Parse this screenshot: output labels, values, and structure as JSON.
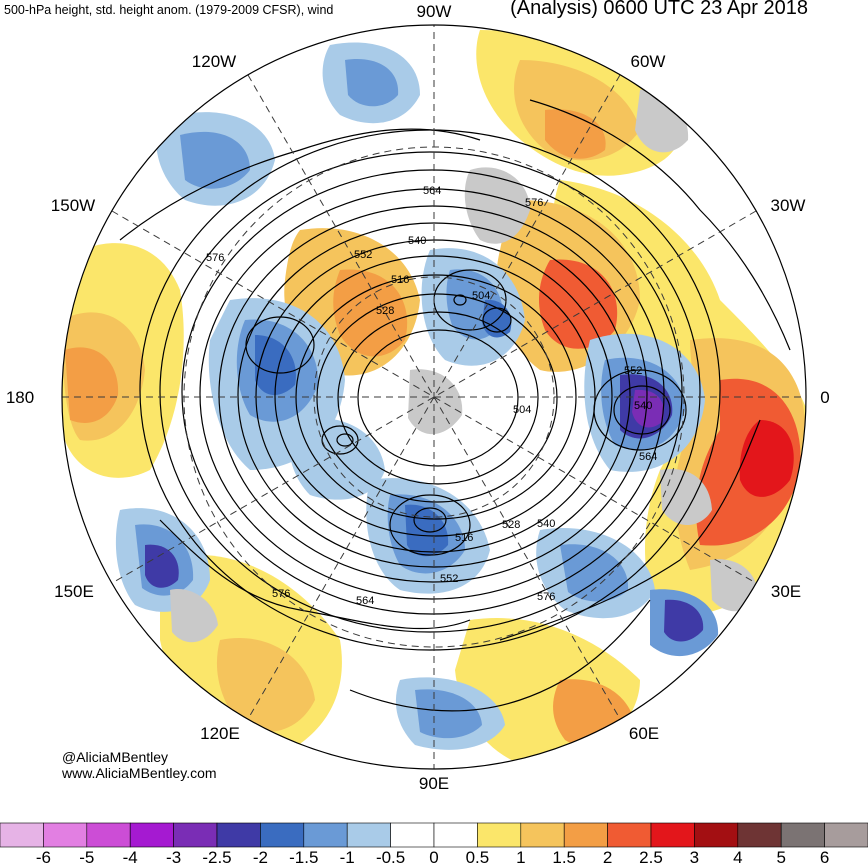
{
  "header": {
    "left": "500-hPa height, std. height anom. (1979-2009 CFSR), wind",
    "right": "(Analysis) 0600 UTC 23 Apr 2018"
  },
  "longitude_labels": {
    "top": "90W",
    "upper_left": "120W",
    "upper_right": "60W",
    "mid_upper_left": "150W",
    "mid_upper_right": "30W",
    "left": "180",
    "right": "0",
    "mid_lower_left": "150E",
    "mid_lower_right": "30E",
    "lower_left": "120E",
    "lower_right": "60E",
    "bottom": "90E"
  },
  "contour_labels": [
    "564",
    "576",
    "540",
    "552",
    "516",
    "528",
    "504",
    "504",
    "504",
    "552",
    "540",
    "564",
    "528",
    "540",
    "516",
    "552",
    "564",
    "576",
    "576",
    "576"
  ],
  "credit": {
    "line1": "@AliciaMBentley",
    "line2": "www.AliciaMBentley.com"
  },
  "colorbar": {
    "ticks": [
      "-6",
      "-5",
      "-4",
      "-3",
      "-2.5",
      "-2",
      "-1.5",
      "-1",
      "-0.5",
      "0",
      "0.5",
      "1",
      "1.5",
      "2",
      "2.5",
      "3",
      "4",
      "5",
      "6"
    ],
    "colors": [
      "#e6b3e6",
      "#e27fe2",
      "#cc4dd6",
      "#a51ad1",
      "#7a2db5",
      "#3f3aa6",
      "#3a6cc0",
      "#6a9ad6",
      "#a9cbe8",
      "#ffffff",
      "#ffffff",
      "#fbe66a",
      "#f5c45c",
      "#f39e45",
      "#f05b33",
      "#e3161b",
      "#a30f12",
      "#6e3434",
      "#7b7373",
      "#a79c9c"
    ]
  },
  "palette": {
    "map_bg": "#ffffff",
    "land": "#c9c9c9",
    "contour": "#000000",
    "grid": "#3a3a3a"
  }
}
